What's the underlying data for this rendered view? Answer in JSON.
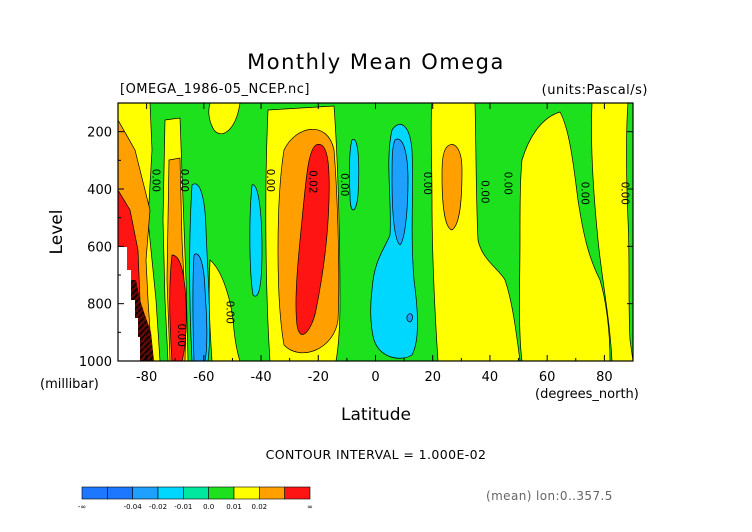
{
  "chart_data": {
    "type": "heatmap",
    "subtype": "filled-contour",
    "title": "Monthly Mean Omega",
    "file_label": "[OMEGA_1986-05_NCEP.nc]",
    "units_label": "(units:Pascal/s)",
    "xlabel": "Latitude",
    "xunits": "(degrees_north)",
    "ylabel": "Level",
    "yunits": "(millibar)",
    "xlim": [
      -90,
      90
    ],
    "ylim": [
      1000,
      100
    ],
    "y_reversed": true,
    "x_ticks": [
      -80,
      -60,
      -40,
      -20,
      0,
      20,
      40,
      60,
      80
    ],
    "x_tick_labels": [
      "-80",
      "-60",
      "-40",
      "-20",
      "0",
      "20",
      "40",
      "60",
      "80"
    ],
    "y_ticks": [
      200,
      400,
      600,
      800,
      1000
    ],
    "y_tick_labels": [
      "200",
      "400",
      "600",
      "800",
      "1000"
    ],
    "contour_interval_text": "CONTOUR INTERVAL = 1.000E-02",
    "footer": "(mean) lon:0..357.5",
    "contour_value_labels": [
      {
        "text": "0.00",
        "lat": -78,
        "level": 370
      },
      {
        "text": "0.00",
        "lat": -68,
        "level": 370
      },
      {
        "text": "0.00",
        "lat": -38,
        "level": 370
      },
      {
        "text": "0.02",
        "lat": -23,
        "level": 375
      },
      {
        "text": "0.00",
        "lat": -12,
        "level": 385
      },
      {
        "text": "0.00",
        "lat": 17,
        "level": 380
      },
      {
        "text": "0.00",
        "lat": 37,
        "level": 410
      },
      {
        "text": "0.00",
        "lat": 45,
        "level": 380
      },
      {
        "text": "0.00",
        "lat": 72,
        "level": 415
      },
      {
        "text": "0.00",
        "lat": 86,
        "level": 415
      },
      {
        "text": "0.00",
        "lat": -52,
        "level": 830
      },
      {
        "text": "0.00",
        "lat": -69,
        "level": 910
      }
    ],
    "colorbar": {
      "labels": [
        "-∞",
        "-0.04",
        "-0.02",
        "-0.01",
        "0.0",
        "0.01",
        "0.02",
        "∞"
      ],
      "bins": [
        {
          "range": "< -0.04",
          "color": "#1e78ff"
        },
        {
          "range": "-0.04 to -0.03",
          "color": "#1e78ff"
        },
        {
          "range": "-0.03 to -0.02",
          "color": "#1ea0ff"
        },
        {
          "range": "-0.02 to -0.01",
          "color": "#00d7ff"
        },
        {
          "range": "-0.01 to 0.0",
          "color": "#00e8a0"
        },
        {
          "range": "0.0 to 0.01",
          "color": "#1ee11e"
        },
        {
          "range": "0.01 to 0.02",
          "color": "#ffff00"
        },
        {
          "range": "0.02 to 0.03",
          "color": "#ffa000"
        },
        {
          "range": "> 0.03",
          "color": "#ff1414"
        }
      ]
    },
    "field_cells": [
      {
        "lat": [
          -90,
          -85
        ],
        "level": [
          100,
          400
        ],
        "value": 0.015
      },
      {
        "lat": [
          -90,
          -84
        ],
        "level": [
          400,
          600
        ],
        "value": 0.035
      },
      {
        "lat": [
          -90,
          -83
        ],
        "level": [
          600,
          1000
        ],
        "value": 0.03
      },
      {
        "lat": [
          -85,
          -80
        ],
        "level": [
          100,
          300
        ],
        "value": 0.025
      },
      {
        "lat": [
          -84,
          -79
        ],
        "level": [
          400,
          700
        ],
        "value": 0.015
      },
      {
        "lat": [
          -79,
          -75
        ],
        "level": [
          500,
          1000
        ],
        "value": 0.035
      },
      {
        "lat": [
          -80,
          -72
        ],
        "level": [
          100,
          1000
        ],
        "value": 0.005
      },
      {
        "lat": [
          -76,
          -72
        ],
        "level": [
          200,
          750
        ],
        "value": 0.015
      },
      {
        "lat": [
          -72,
          -66
        ],
        "level": [
          680,
          1000
        ],
        "value": 0.035
      },
      {
        "lat": [
          -73,
          -64
        ],
        "level": [
          100,
          1000
        ],
        "value": 0.005
      },
      {
        "lat": [
          -66,
          -60
        ],
        "level": [
          100,
          1000
        ],
        "value": -0.015
      },
      {
        "lat": [
          -63,
          -60
        ],
        "level": [
          560,
          1000
        ],
        "value": -0.025
      },
      {
        "lat": [
          -60,
          -44
        ],
        "level": [
          100,
          1000
        ],
        "value": -0.005
      },
      {
        "lat": [
          -42,
          -36
        ],
        "level": [
          350,
          700
        ],
        "value": -0.015
      },
      {
        "lat": [
          -36,
          -20
        ],
        "level": [
          100,
          1000
        ],
        "value": 0.015
      },
      {
        "lat": [
          -32,
          -16
        ],
        "level": [
          200,
          960
        ],
        "value": 0.025
      },
      {
        "lat": [
          -27,
          -19
        ],
        "level": [
          250,
          880
        ],
        "value": 0.035
      },
      {
        "lat": [
          -12,
          -5
        ],
        "level": [
          100,
          1000
        ],
        "value": 0.005
      },
      {
        "lat": [
          -5,
          10
        ],
        "level": [
          100,
          1000
        ],
        "value": -0.005
      },
      {
        "lat": [
          -4,
          14
        ],
        "level": [
          200,
          960
        ],
        "value": -0.015
      },
      {
        "lat": [
          4,
          11
        ],
        "level": [
          220,
          600
        ],
        "value": -0.025
      },
      {
        "lat": [
          14,
          24
        ],
        "level": [
          100,
          1000
        ],
        "value": 0.005
      },
      {
        "lat": [
          24,
          30
        ],
        "level": [
          260,
          560
        ],
        "value": 0.025
      },
      {
        "lat": [
          30,
          40
        ],
        "level": [
          100,
          1000
        ],
        "value": 0.015
      },
      {
        "lat": [
          40,
          50
        ],
        "level": [
          100,
          1000
        ],
        "value": -0.005
      },
      {
        "lat": [
          50,
          62
        ],
        "level": [
          300,
          1000
        ],
        "value": 0.015
      },
      {
        "lat": [
          62,
          72
        ],
        "level": [
          100,
          1000
        ],
        "value": -0.005
      },
      {
        "lat": [
          72,
          88
        ],
        "level": [
          250,
          1000
        ],
        "value": 0.015
      },
      {
        "lat": [
          88,
          90
        ],
        "level": [
          100,
          1000
        ],
        "value": -0.005
      }
    ]
  }
}
